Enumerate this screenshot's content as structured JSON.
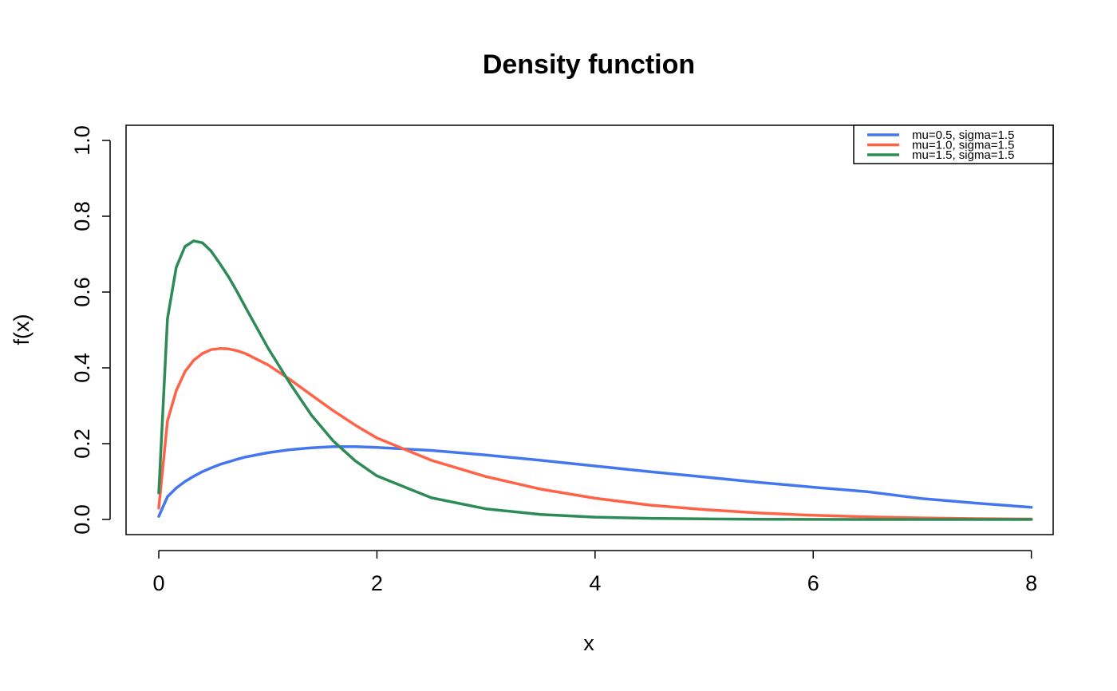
{
  "chart_data": {
    "type": "line",
    "title": "Density function",
    "xlabel": "x",
    "ylabel": "f(x)",
    "xlim": [
      -0.3,
      8.2
    ],
    "ylim": [
      -0.04,
      1.04
    ],
    "x_ticks": [
      0,
      2,
      4,
      6,
      8
    ],
    "x_tick_labels": [
      "0",
      "2",
      "4",
      "6",
      "8"
    ],
    "y_ticks": [
      0.0,
      0.2,
      0.4,
      0.6,
      0.8,
      1.0
    ],
    "y_tick_labels": [
      "0.0",
      "0.2",
      "0.4",
      "0.6",
      "0.8",
      "1.0"
    ],
    "grid": false,
    "legend_position": "top-right",
    "x": [
      0.0,
      0.08,
      0.16,
      0.24,
      0.32,
      0.4,
      0.48,
      0.56,
      0.64,
      0.72,
      0.8,
      1.0,
      1.2,
      1.4,
      1.6,
      1.8,
      2.0,
      2.5,
      3.0,
      3.5,
      4.0,
      4.5,
      5.0,
      5.5,
      6.0,
      6.5,
      7.0,
      7.5,
      8.0
    ],
    "series": [
      {
        "name": "mu=0.5, sigma=1.5",
        "color": "#4477ee",
        "values": [
          0.008,
          0.06,
          0.083,
          0.1,
          0.114,
          0.126,
          0.136,
          0.145,
          0.152,
          0.159,
          0.165,
          0.176,
          0.184,
          0.189,
          0.192,
          0.192,
          0.19,
          0.182,
          0.17,
          0.156,
          0.141,
          0.126,
          0.112,
          0.098,
          0.085,
          0.073,
          0.055,
          0.043,
          0.032
        ]
      },
      {
        "name": "mu=1.0, sigma=1.5",
        "color": "#ff6347",
        "values": [
          0.03,
          0.26,
          0.34,
          0.39,
          0.42,
          0.438,
          0.448,
          0.451,
          0.45,
          0.445,
          0.437,
          0.408,
          0.37,
          0.328,
          0.287,
          0.249,
          0.215,
          0.156,
          0.113,
          0.08,
          0.056,
          0.038,
          0.026,
          0.017,
          0.011,
          0.007,
          0.004,
          0.002,
          0.001
        ]
      },
      {
        "name": "mu=1.5, sigma=1.5",
        "color": "#2e8b57",
        "values": [
          0.07,
          0.53,
          0.665,
          0.72,
          0.735,
          0.73,
          0.708,
          0.675,
          0.64,
          0.6,
          0.557,
          0.453,
          0.36,
          0.275,
          0.207,
          0.155,
          0.115,
          0.057,
          0.028,
          0.013,
          0.006,
          0.003,
          0.0015,
          0.0007,
          0.0003,
          0.0001,
          0.0,
          0.0,
          0.0
        ]
      }
    ]
  }
}
